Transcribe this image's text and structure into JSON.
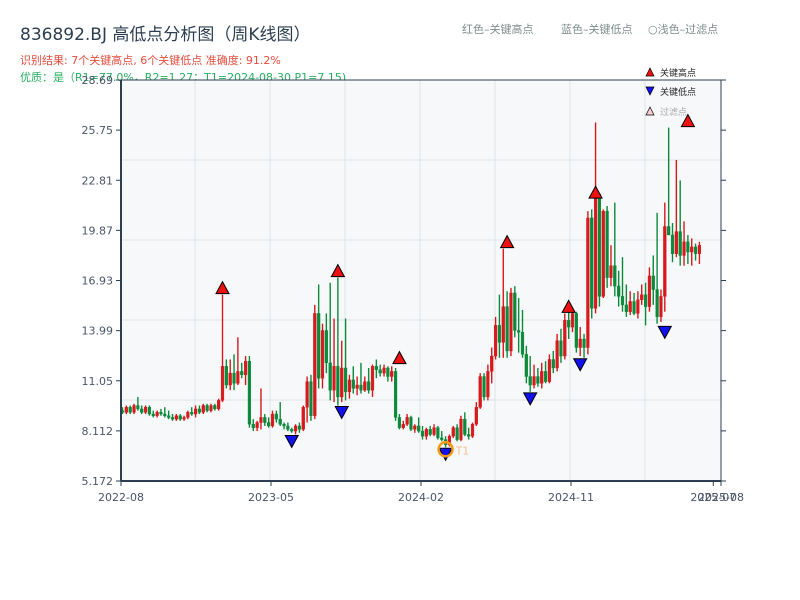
{
  "header": {
    "title": "836892.BJ 高低点分析图（周K线图）",
    "result_line": "识别结果: 7个关键高点, 6个关键低点  准确度: 91.2%",
    "quality_line": "优质：是（R1=77.0%，R2=1.27；T1=2024-08-30 P1=7.15)"
  },
  "top_legend": {
    "red": "红色–关键高点",
    "blue": "蓝色–关键低点",
    "filtered": "○浅色–过滤点"
  },
  "colors": {
    "up": "#d7191c",
    "down": "#0a8a3a",
    "high_marker": "#ee1111",
    "low_marker": "#1111ee",
    "t1_circle": "#f39c12",
    "plot_bg": "#f7f8fa",
    "grid": "#dfe3e8",
    "spine": "#2c3e50"
  },
  "chart_data": {
    "type": "candlestick",
    "title": "836892.BJ 高低点分析图（周K线图）",
    "xlabel": "",
    "ylabel": "",
    "ylim": [
      5.172,
      28.69
    ],
    "yticks": [
      "28.69",
      "25.75",
      "22.81",
      "19.87",
      "16.93",
      "13.99",
      "11.05",
      "8.112",
      "5.172"
    ],
    "ytick_values": [
      28.69,
      25.75,
      22.81,
      19.87,
      16.93,
      13.99,
      11.05,
      8.112,
      5.172
    ],
    "xticks": [
      {
        "label": "2022-08",
        "week": 0
      },
      {
        "label": "2023-05",
        "week": 39
      },
      {
        "label": "2024-02",
        "week": 78
      },
      {
        "label": "2024-11",
        "week": 117
      },
      {
        "label": "2025-07",
        "week": 154
      },
      {
        "label": "2025-08",
        "week": 156
      }
    ],
    "grid": true,
    "legend": {
      "position": "upper right",
      "entries": [
        {
          "label": "关键高点",
          "marker": "triangle-up",
          "color": "#ee1111"
        },
        {
          "label": "关键低点",
          "marker": "triangle-down",
          "color": "#1111ee"
        },
        {
          "label": "过滤点",
          "marker": "triangle-up-light",
          "color": "#f8d0d0"
        }
      ]
    },
    "total_weeks": 156,
    "candles": [
      [
        9.3,
        9.5,
        9.1,
        9.2
      ],
      [
        9.2,
        9.6,
        9.1,
        9.5
      ],
      [
        9.5,
        9.6,
        9.1,
        9.2
      ],
      [
        9.2,
        9.7,
        9.1,
        9.6
      ],
      [
        9.6,
        10.1,
        9.3,
        9.4
      ],
      [
        9.4,
        9.6,
        9.1,
        9.2
      ],
      [
        9.2,
        9.6,
        9.1,
        9.5
      ],
      [
        9.5,
        9.6,
        9.0,
        9.1
      ],
      [
        9.1,
        9.3,
        8.9,
        9.0
      ],
      [
        9.0,
        9.3,
        8.9,
        9.2
      ],
      [
        9.2,
        9.4,
        9.0,
        9.1
      ],
      [
        9.1,
        9.5,
        8.9,
        9.0
      ],
      [
        9.0,
        9.3,
        8.8,
        8.9
      ],
      [
        8.9,
        9.1,
        8.7,
        8.8
      ],
      [
        8.8,
        9.1,
        8.7,
        9.0
      ],
      [
        9.0,
        9.1,
        8.7,
        8.8
      ],
      [
        8.8,
        9.0,
        8.7,
        8.9
      ],
      [
        8.9,
        9.3,
        8.8,
        9.2
      ],
      [
        9.2,
        9.5,
        9.0,
        9.1
      ],
      [
        9.1,
        9.6,
        8.9,
        9.4
      ],
      [
        9.4,
        9.6,
        9.1,
        9.2
      ],
      [
        9.2,
        9.7,
        9.1,
        9.6
      ],
      [
        9.6,
        9.7,
        9.2,
        9.3
      ],
      [
        9.3,
        9.7,
        9.2,
        9.6
      ],
      [
        9.6,
        9.7,
        9.3,
        9.4
      ],
      [
        9.4,
        10.0,
        9.3,
        9.9
      ],
      [
        9.9,
        16.1,
        9.8,
        11.9
      ],
      [
        11.9,
        12.3,
        10.6,
        10.8
      ],
      [
        10.8,
        12.3,
        10.5,
        11.5
      ],
      [
        11.5,
        12.6,
        10.5,
        10.9
      ],
      [
        10.9,
        13.6,
        10.8,
        11.6
      ],
      [
        11.6,
        12.1,
        11.2,
        11.4
      ],
      [
        11.4,
        12.5,
        10.8,
        12.2
      ],
      [
        12.2,
        12.5,
        8.3,
        8.5
      ],
      [
        8.5,
        8.8,
        8.1,
        8.3
      ],
      [
        8.3,
        8.7,
        8.1,
        8.6
      ],
      [
        8.6,
        10.6,
        8.2,
        8.9
      ],
      [
        8.9,
        9.1,
        8.4,
        8.6
      ],
      [
        8.6,
        8.9,
        8.3,
        8.4
      ],
      [
        8.4,
        9.3,
        8.3,
        9.1
      ],
      [
        9.1,
        9.3,
        8.6,
        8.8
      ],
      [
        8.8,
        9.8,
        8.4,
        8.5
      ],
      [
        8.5,
        8.6,
        8.2,
        8.4
      ],
      [
        8.4,
        8.6,
        8.1,
        8.2
      ],
      [
        8.2,
        8.3,
        8.0,
        8.1
      ],
      [
        8.1,
        8.5,
        7.9,
        8.4
      ],
      [
        8.4,
        8.6,
        8.0,
        8.2
      ],
      [
        8.2,
        9.6,
        8.1,
        9.5
      ],
      [
        9.5,
        11.3,
        8.6,
        11.0
      ],
      [
        11.0,
        11.4,
        8.7,
        9.0
      ],
      [
        9.0,
        15.5,
        8.8,
        15.0
      ],
      [
        15.0,
        16.7,
        10.6,
        11.2
      ],
      [
        11.2,
        14.4,
        10.6,
        14.0
      ],
      [
        14.0,
        15.0,
        11.5,
        12.1
      ],
      [
        12.1,
        16.8,
        9.9,
        10.5
      ],
      [
        10.5,
        14.7,
        9.8,
        11.9
      ],
      [
        11.9,
        17.1,
        9.6,
        10.1
      ],
      [
        10.1,
        13.4,
        9.8,
        11.8
      ],
      [
        11.8,
        14.7,
        9.9,
        10.4
      ],
      [
        10.4,
        11.4,
        10.0,
        11.1
      ],
      [
        11.1,
        11.9,
        10.3,
        10.6
      ],
      [
        10.6,
        11.3,
        10.2,
        10.8
      ],
      [
        10.8,
        12.1,
        10.3,
        10.5
      ],
      [
        10.5,
        11.3,
        10.4,
        11.0
      ],
      [
        11.0,
        11.8,
        10.3,
        10.5
      ],
      [
        10.5,
        12.0,
        10.1,
        11.9
      ],
      [
        11.9,
        12.3,
        11.2,
        11.7
      ],
      [
        11.7,
        12.0,
        11.3,
        11.5
      ],
      [
        11.5,
        12.0,
        11.3,
        11.8
      ],
      [
        11.8,
        11.9,
        11.0,
        11.3
      ],
      [
        11.3,
        11.9,
        11.0,
        11.6
      ],
      [
        11.6,
        11.8,
        8.7,
        8.9
      ],
      [
        8.9,
        9.1,
        8.2,
        8.3
      ],
      [
        8.3,
        8.7,
        8.2,
        8.5
      ],
      [
        8.5,
        9.1,
        8.4,
        8.9
      ],
      [
        8.9,
        9.0,
        8.1,
        8.2
      ],
      [
        8.2,
        8.5,
        8.0,
        8.4
      ],
      [
        8.4,
        8.9,
        8.0,
        8.1
      ],
      [
        8.1,
        8.4,
        7.6,
        7.8
      ],
      [
        7.8,
        8.3,
        7.6,
        8.2
      ],
      [
        8.2,
        8.4,
        7.8,
        7.9
      ],
      [
        7.9,
        8.5,
        7.8,
        8.3
      ],
      [
        8.3,
        8.4,
        7.6,
        7.7
      ],
      [
        7.7,
        8.1,
        7.5,
        7.6
      ],
      [
        7.6,
        7.8,
        7.15,
        7.3
      ],
      [
        7.3,
        7.9,
        7.2,
        7.8
      ],
      [
        7.8,
        8.4,
        7.7,
        8.3
      ],
      [
        8.3,
        8.5,
        7.5,
        7.6
      ],
      [
        7.6,
        9.0,
        7.5,
        8.8
      ],
      [
        8.8,
        9.2,
        7.8,
        7.9
      ],
      [
        7.9,
        8.3,
        7.6,
        7.8
      ],
      [
        7.8,
        8.6,
        7.7,
        8.5
      ],
      [
        8.5,
        9.8,
        8.4,
        9.5
      ],
      [
        9.5,
        11.5,
        9.4,
        11.3
      ],
      [
        11.3,
        11.5,
        9.9,
        10.1
      ],
      [
        10.1,
        12.0,
        9.9,
        11.6
      ],
      [
        11.6,
        13.0,
        10.9,
        12.5
      ],
      [
        12.5,
        14.8,
        12.3,
        14.3
      ],
      [
        14.3,
        16.1,
        12.4,
        13.3
      ],
      [
        13.3,
        18.8,
        12.4,
        15.4
      ],
      [
        15.4,
        16.3,
        12.4,
        12.8
      ],
      [
        12.8,
        16.5,
        12.5,
        16.2
      ],
      [
        16.2,
        16.6,
        13.6,
        14.0
      ],
      [
        14.0,
        15.9,
        12.7,
        13.9
      ],
      [
        13.9,
        15.2,
        12.4,
        12.6
      ],
      [
        12.6,
        13.1,
        10.9,
        11.3
      ],
      [
        11.3,
        12.5,
        10.4,
        10.8
      ],
      [
        10.8,
        12.0,
        10.6,
        11.3
      ],
      [
        11.3,
        11.8,
        10.7,
        10.9
      ],
      [
        10.9,
        12.1,
        10.6,
        11.6
      ],
      [
        11.6,
        12.2,
        10.9,
        11.0
      ],
      [
        11.0,
        12.6,
        10.9,
        12.3
      ],
      [
        12.3,
        12.8,
        11.5,
        11.8
      ],
      [
        11.8,
        13.8,
        11.6,
        13.4
      ],
      [
        13.4,
        14.1,
        12.1,
        12.5
      ],
      [
        12.5,
        15.0,
        12.3,
        14.6
      ],
      [
        14.6,
        15.4,
        13.5,
        14.2
      ],
      [
        14.2,
        15.1,
        13.9,
        15.0
      ],
      [
        15.0,
        15.1,
        12.7,
        13.0
      ],
      [
        13.0,
        14.2,
        12.5,
        13.5
      ],
      [
        13.5,
        13.8,
        12.4,
        13.0
      ],
      [
        13.0,
        21.0,
        12.6,
        20.6
      ],
      [
        20.6,
        21.1,
        14.7,
        15.3
      ],
      [
        15.3,
        26.2,
        15.0,
        22.0
      ],
      [
        22.0,
        21.8,
        15.4,
        16.0
      ],
      [
        16.0,
        21.1,
        15.9,
        21.0
      ],
      [
        21.0,
        21.3,
        16.5,
        17.1
      ],
      [
        17.1,
        19.0,
        16.6,
        17.8
      ],
      [
        17.8,
        21.5,
        16.0,
        16.6
      ],
      [
        16.6,
        17.5,
        15.4,
        16.0
      ],
      [
        16.0,
        18.3,
        15.1,
        15.5
      ],
      [
        15.5,
        16.7,
        14.8,
        15.1
      ],
      [
        15.1,
        16.3,
        14.9,
        15.7
      ],
      [
        15.7,
        16.2,
        14.9,
        15.0
      ],
      [
        15.0,
        16.3,
        14.7,
        15.8
      ],
      [
        15.8,
        16.7,
        15.5,
        16.1
      ],
      [
        16.1,
        16.8,
        14.3,
        15.4
      ],
      [
        15.4,
        17.7,
        15.1,
        17.2
      ],
      [
        17.2,
        18.4,
        15.5,
        16.4
      ],
      [
        16.4,
        20.9,
        14.4,
        14.8
      ],
      [
        14.8,
        16.4,
        14.5,
        16.0
      ],
      [
        16.0,
        21.5,
        15.1,
        20.1
      ],
      [
        20.1,
        25.9,
        19.7,
        19.6
      ],
      [
        19.6,
        20.3,
        18.0,
        18.5
      ],
      [
        18.5,
        24.0,
        18.3,
        19.8
      ],
      [
        19.8,
        22.8,
        17.8,
        18.4
      ],
      [
        18.4,
        20.4,
        17.8,
        19.2
      ],
      [
        19.2,
        19.6,
        17.9,
        18.6
      ],
      [
        18.6,
        19.4,
        17.8,
        18.9
      ],
      [
        18.9,
        19.1,
        18.1,
        18.5
      ],
      [
        18.5,
        19.2,
        17.9,
        19.0
      ]
    ],
    "key_highs": [
      {
        "week": 26,
        "price": 16.1
      },
      {
        "week": 56,
        "price": 17.1
      },
      {
        "week": 72,
        "price": 12.0
      },
      {
        "week": 100,
        "price": 18.8
      },
      {
        "week": 116,
        "price": 15.0
      },
      {
        "week": 123,
        "price": 21.7
      },
      {
        "week": 147,
        "price": 25.9
      }
    ],
    "key_lows": [
      {
        "week": 44,
        "price": 7.9
      },
      {
        "week": 57,
        "price": 9.6
      },
      {
        "week": 84,
        "price": 7.15
      },
      {
        "week": 106,
        "price": 10.4
      },
      {
        "week": 119,
        "price": 12.4
      },
      {
        "week": 141,
        "price": 14.3
      }
    ],
    "t1_point": {
      "label": "T1",
      "date": "2024-08-30",
      "week": 84,
      "price": 7.15
    },
    "filtered_points_visible": [
      {
        "week": 87,
        "price": 7.5
      }
    ],
    "annotations": {
      "R1": "77.0%",
      "R2": "1.27",
      "T1": "2024-08-30",
      "P1": "7.15"
    }
  }
}
